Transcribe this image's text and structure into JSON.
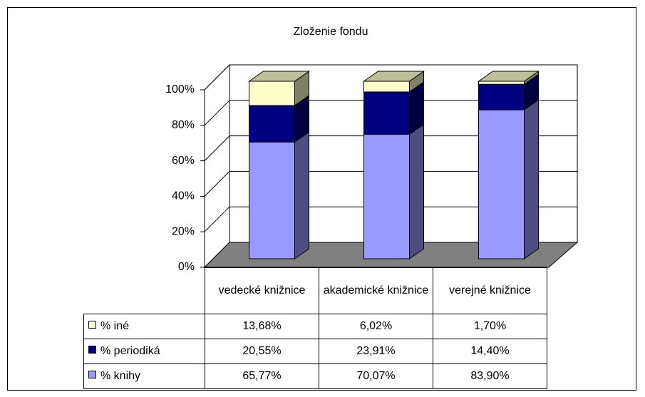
{
  "chart_data": {
    "type": "bar3d_stacked",
    "title": "Zloženie fondu",
    "categories": [
      "vedecké knižnice",
      "akademické knižnice",
      "verejné knižnice"
    ],
    "series": [
      {
        "name": "% knihy",
        "color": "#9999ff",
        "values": [
          65.77,
          70.07,
          83.9
        ],
        "value_labels": [
          "65,77%",
          "70,07%",
          "83,90%"
        ]
      },
      {
        "name": "% periodiká",
        "color": "#000080",
        "values": [
          20.55,
          23.91,
          14.4
        ],
        "value_labels": [
          "20,55%",
          "23,91%",
          "14,40%"
        ]
      },
      {
        "name": "% iné",
        "color": "#ffffcc",
        "values": [
          13.68,
          6.02,
          1.7
        ],
        "value_labels": [
          "13,68%",
          "6,02%",
          "1,70%"
        ]
      }
    ],
    "ylim": [
      0,
      100
    ],
    "yticks": [
      {
        "value": 0,
        "label": "0%"
      },
      {
        "value": 20,
        "label": "20%"
      },
      {
        "value": 40,
        "label": "40%"
      },
      {
        "value": 60,
        "label": "60%"
      },
      {
        "value": 80,
        "label": "80%"
      },
      {
        "value": 100,
        "label": "100%"
      }
    ],
    "grid": true
  }
}
